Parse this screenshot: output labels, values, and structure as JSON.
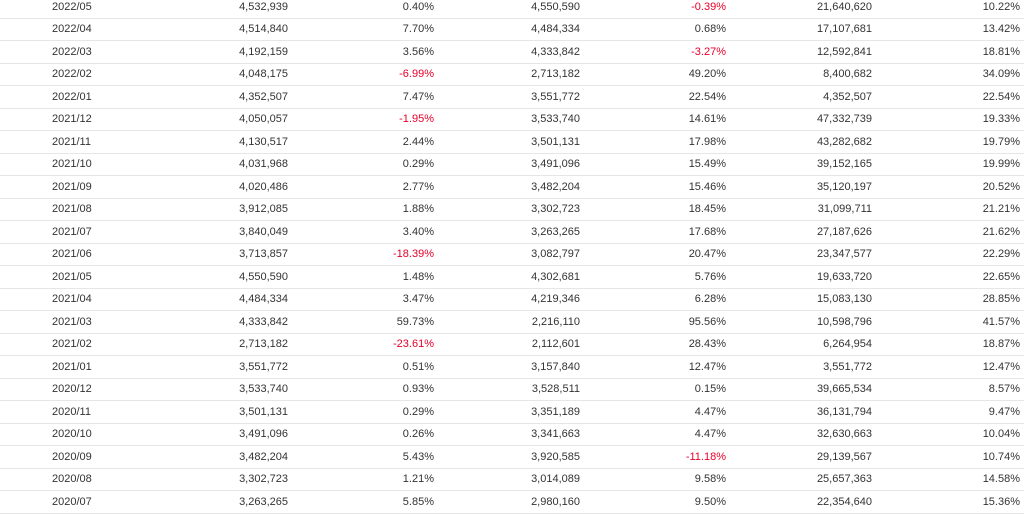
{
  "rows": [
    [
      "2022/05",
      "4,532,939",
      "0.40%",
      "4,550,590",
      "-0.39%",
      "21,640,620",
      "10.22%"
    ],
    [
      "2022/04",
      "4,514,840",
      "7.70%",
      "4,484,334",
      "0.68%",
      "17,107,681",
      "13.42%"
    ],
    [
      "2022/03",
      "4,192,159",
      "3.56%",
      "4,333,842",
      "-3.27%",
      "12,592,841",
      "18.81%"
    ],
    [
      "2022/02",
      "4,048,175",
      "-6.99%",
      "2,713,182",
      "49.20%",
      "8,400,682",
      "34.09%"
    ],
    [
      "2022/01",
      "4,352,507",
      "7.47%",
      "3,551,772",
      "22.54%",
      "4,352,507",
      "22.54%"
    ],
    [
      "2021/12",
      "4,050,057",
      "-1.95%",
      "3,533,740",
      "14.61%",
      "47,332,739",
      "19.33%"
    ],
    [
      "2021/11",
      "4,130,517",
      "2.44%",
      "3,501,131",
      "17.98%",
      "43,282,682",
      "19.79%"
    ],
    [
      "2021/10",
      "4,031,968",
      "0.29%",
      "3,491,096",
      "15.49%",
      "39,152,165",
      "19.99%"
    ],
    [
      "2021/09",
      "4,020,486",
      "2.77%",
      "3,482,204",
      "15.46%",
      "35,120,197",
      "20.52%"
    ],
    [
      "2021/08",
      "3,912,085",
      "1.88%",
      "3,302,723",
      "18.45%",
      "31,099,711",
      "21.21%"
    ],
    [
      "2021/07",
      "3,840,049",
      "3.40%",
      "3,263,265",
      "17.68%",
      "27,187,626",
      "21.62%"
    ],
    [
      "2021/06",
      "3,713,857",
      "-18.39%",
      "3,082,797",
      "20.47%",
      "23,347,577",
      "22.29%"
    ],
    [
      "2021/05",
      "4,550,590",
      "1.48%",
      "4,302,681",
      "5.76%",
      "19,633,720",
      "22.65%"
    ],
    [
      "2021/04",
      "4,484,334",
      "3.47%",
      "4,219,346",
      "6.28%",
      "15,083,130",
      "28.85%"
    ],
    [
      "2021/03",
      "4,333,842",
      "59.73%",
      "2,216,110",
      "95.56%",
      "10,598,796",
      "41.57%"
    ],
    [
      "2021/02",
      "2,713,182",
      "-23.61%",
      "2,112,601",
      "28.43%",
      "6,264,954",
      "18.87%"
    ],
    [
      "2021/01",
      "3,551,772",
      "0.51%",
      "3,157,840",
      "12.47%",
      "3,551,772",
      "12.47%"
    ],
    [
      "2020/12",
      "3,533,740",
      "0.93%",
      "3,528,511",
      "0.15%",
      "39,665,534",
      "8.57%"
    ],
    [
      "2020/11",
      "3,501,131",
      "0.29%",
      "3,351,189",
      "4.47%",
      "36,131,794",
      "9.47%"
    ],
    [
      "2020/10",
      "3,491,096",
      "0.26%",
      "3,341,663",
      "4.47%",
      "32,630,663",
      "10.04%"
    ],
    [
      "2020/09",
      "3,482,204",
      "5.43%",
      "3,920,585",
      "-11.18%",
      "29,139,567",
      "10.74%"
    ],
    [
      "2020/08",
      "3,302,723",
      "1.21%",
      "3,014,089",
      "9.58%",
      "25,657,363",
      "14.58%"
    ],
    [
      "2020/07",
      "3,263,265",
      "5.85%",
      "2,980,160",
      "9.50%",
      "22,354,640",
      "15.36%"
    ]
  ],
  "colors": {
    "negative": "#e8002a",
    "text": "#333333",
    "divider": "#e6e6e6"
  }
}
